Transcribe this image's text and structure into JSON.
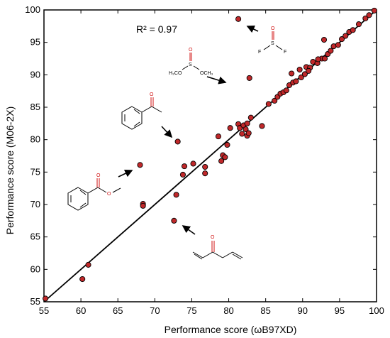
{
  "chart_data": {
    "type": "scatter",
    "xlabel": "Performance score (ωB97XD)",
    "ylabel": "Performance score (M06-2X)",
    "xlim": [
      55,
      100
    ],
    "ylim": [
      55,
      100
    ],
    "xticks": [
      55,
      60,
      65,
      70,
      75,
      80,
      85,
      90,
      95,
      100
    ],
    "yticks": [
      55,
      60,
      65,
      70,
      75,
      80,
      85,
      90,
      95,
      100
    ],
    "annotation_r2": "R² = 0.97",
    "fit_line": {
      "x": [
        55,
        100
      ],
      "y": [
        55,
        100
      ]
    },
    "marker_color": "#c0282a",
    "points": [
      [
        55.2,
        55.5
      ],
      [
        60.2,
        58.5
      ],
      [
        61.0,
        60.7
      ],
      [
        68.0,
        76.1
      ],
      [
        68.4,
        70.1
      ],
      [
        68.4,
        69.8
      ],
      [
        72.6,
        67.5
      ],
      [
        72.9,
        71.5
      ],
      [
        73.1,
        79.7
      ],
      [
        73.8,
        74.6
      ],
      [
        74.0,
        75.9
      ],
      [
        75.2,
        76.3
      ],
      [
        76.8,
        75.8
      ],
      [
        76.8,
        74.8
      ],
      [
        78.6,
        80.5
      ],
      [
        79.0,
        76.7
      ],
      [
        79.2,
        77.6
      ],
      [
        79.5,
        77.3
      ],
      [
        79.8,
        79.2
      ],
      [
        80.2,
        81.8
      ],
      [
        81.3,
        82.4
      ],
      [
        81.5,
        81.8
      ],
      [
        81.8,
        80.9
      ],
      [
        82.0,
        82.2
      ],
      [
        82.3,
        81.6
      ],
      [
        82.5,
        80.6
      ],
      [
        82.7,
        81.0
      ],
      [
        82.5,
        82.5
      ],
      [
        83.0,
        83.4
      ],
      [
        84.5,
        82.1
      ],
      [
        85.4,
        85.5
      ],
      [
        86.2,
        86.0
      ],
      [
        86.6,
        86.6
      ],
      [
        87.0,
        87.1
      ],
      [
        87.4,
        87.3
      ],
      [
        87.8,
        87.6
      ],
      [
        88.2,
        88.4
      ],
      [
        88.5,
        90.2
      ],
      [
        88.7,
        88.8
      ],
      [
        89.1,
        89.0
      ],
      [
        89.6,
        90.8
      ],
      [
        89.8,
        89.6
      ],
      [
        90.3,
        90.1
      ],
      [
        90.5,
        91.2
      ],
      [
        91.0,
        91.1
      ],
      [
        91.4,
        92.0
      ],
      [
        92.0,
        91.8
      ],
      [
        92.6,
        92.5
      ],
      [
        93.0,
        92.5
      ],
      [
        92.9,
        95.4
      ],
      [
        93.4,
        93.2
      ],
      [
        93.8,
        93.7
      ],
      [
        94.2,
        94.4
      ],
      [
        94.8,
        94.6
      ],
      [
        95.3,
        95.5
      ],
      [
        95.8,
        96.0
      ],
      [
        96.3,
        96.6
      ],
      [
        96.8,
        96.9
      ],
      [
        97.6,
        97.8
      ],
      [
        98.5,
        98.7
      ],
      [
        99.0,
        99.2
      ],
      [
        99.7,
        99.9
      ],
      [
        81.3,
        98.6
      ],
      [
        82.8,
        89.5
      ],
      [
        92.1,
        92.4
      ],
      [
        90.8,
        90.6
      ]
    ]
  },
  "molecules": {
    "sulfonyl_fluoride": {
      "atoms": [
        "O",
        "S",
        "F",
        "F"
      ]
    },
    "dimethyl_sulfite": {
      "atoms": [
        "O",
        "S",
        "H₃CO",
        "OCH₃"
      ]
    },
    "acetophenone": {
      "atoms": [
        "O"
      ]
    },
    "methyl_benzoate": {
      "atoms": [
        "O",
        "O"
      ]
    },
    "divinyl_ketone": {
      "atoms": [
        "O"
      ]
    }
  }
}
